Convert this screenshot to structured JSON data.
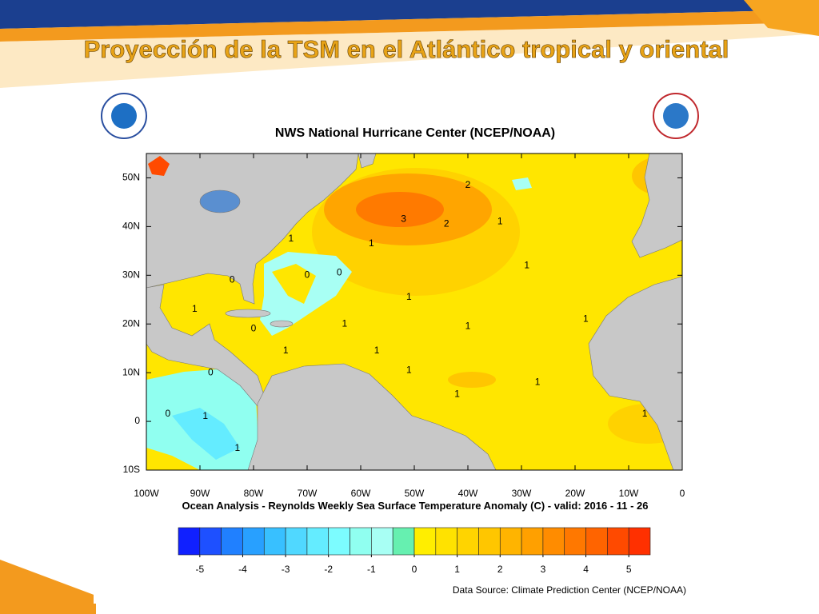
{
  "slide": {
    "title": "Proyección de la TSM en el Atlántico tropical y oriental"
  },
  "map": {
    "title": "NWS National Hurricane Center (NCEP/NOAA)",
    "caption": "Ocean Analysis - Reynolds Weekly Sea Surface Temperature Anomaly (C) - valid: 2016 - 11 - 26",
    "source": "Data Source: Climate Prediction Center (NCEP/NOAA)",
    "xlim": [
      -100,
      0
    ],
    "ylim": [
      -10,
      55
    ],
    "xticks": [
      {
        "value": -100,
        "label": "100W"
      },
      {
        "value": -90,
        "label": "90W"
      },
      {
        "value": -80,
        "label": "80W"
      },
      {
        "value": -70,
        "label": "70W"
      },
      {
        "value": -60,
        "label": "60W"
      },
      {
        "value": -50,
        "label": "50W"
      },
      {
        "value": -40,
        "label": "40W"
      },
      {
        "value": -30,
        "label": "30W"
      },
      {
        "value": -20,
        "label": "20W"
      },
      {
        "value": -10,
        "label": "10W"
      },
      0
    ],
    "yticks": [
      {
        "value": 50,
        "label": "50N"
      },
      {
        "value": 40,
        "label": "40N"
      },
      {
        "value": 30,
        "label": "30N"
      },
      {
        "value": 20,
        "label": "20N"
      },
      {
        "value": 10,
        "label": "10N"
      },
      0,
      {
        "value": -10,
        "label": "10S"
      }
    ],
    "contour_labels": [
      {
        "value": 3,
        "lon": -52,
        "lat": 41.5
      },
      {
        "value": 2,
        "lon": -44,
        "lat": 40.5
      },
      {
        "value": 2,
        "lon": -40,
        "lat": 48.5
      },
      {
        "value": 1,
        "lon": -34,
        "lat": 41
      },
      {
        "value": 1,
        "lon": -73,
        "lat": 37.5
      },
      {
        "value": 1,
        "lon": -58,
        "lat": 36.5
      },
      {
        "value": 0,
        "lon": -84,
        "lat": 29
      },
      {
        "value": 0,
        "lon": -70,
        "lat": 30
      },
      {
        "value": 0,
        "lon": -64,
        "lat": 30.5
      },
      {
        "value": 1,
        "lon": -51,
        "lat": 25.5
      },
      {
        "value": 1,
        "lon": -91,
        "lat": 23
      },
      {
        "value": 0,
        "lon": -80,
        "lat": 19
      },
      {
        "value": 1,
        "lon": -63,
        "lat": 20
      },
      {
        "value": 1,
        "lon": -57,
        "lat": 14.5
      },
      {
        "value": 1,
        "lon": -74,
        "lat": 14.5
      },
      {
        "value": 1,
        "lon": -40,
        "lat": 19.5
      },
      {
        "value": 1,
        "lon": -18,
        "lat": 21
      },
      {
        "value": 1,
        "lon": -51,
        "lat": 10.5
      },
      {
        "value": 1,
        "lon": -42,
        "lat": 5.5
      },
      {
        "value": 1,
        "lon": -27,
        "lat": 8
      },
      {
        "value": 1,
        "lon": -7,
        "lat": 1.5
      },
      {
        "value": 0,
        "lon": -88,
        "lat": 10
      },
      {
        "value": 0,
        "lon": -96,
        "lat": 1.5
      },
      {
        "value": 1,
        "lon": -89,
        "lat": 1
      },
      {
        "value": 1,
        "lon": -83,
        "lat": -5.5
      },
      {
        "value": 1,
        "lon": -29,
        "lat": 32
      }
    ],
    "colorbar": {
      "lim": [
        -5.5,
        5.5
      ],
      "ticks": [
        -5,
        -4,
        -3,
        -2,
        -1,
        0,
        1,
        2,
        3,
        4,
        5
      ],
      "colors": [
        "#1020ff",
        "#1e50ff",
        "#2080ff",
        "#28a0ff",
        "#38c0ff",
        "#50d8ff",
        "#64ecff",
        "#7cfcff",
        "#90fff0",
        "#a8fff4",
        "#66f0b0",
        "#ffee00",
        "#ffe200",
        "#ffd400",
        "#ffc600",
        "#ffb400",
        "#ffa000",
        "#ff8c00",
        "#ff7800",
        "#ff6400",
        "#ff4a00",
        "#ff3000"
      ]
    }
  }
}
